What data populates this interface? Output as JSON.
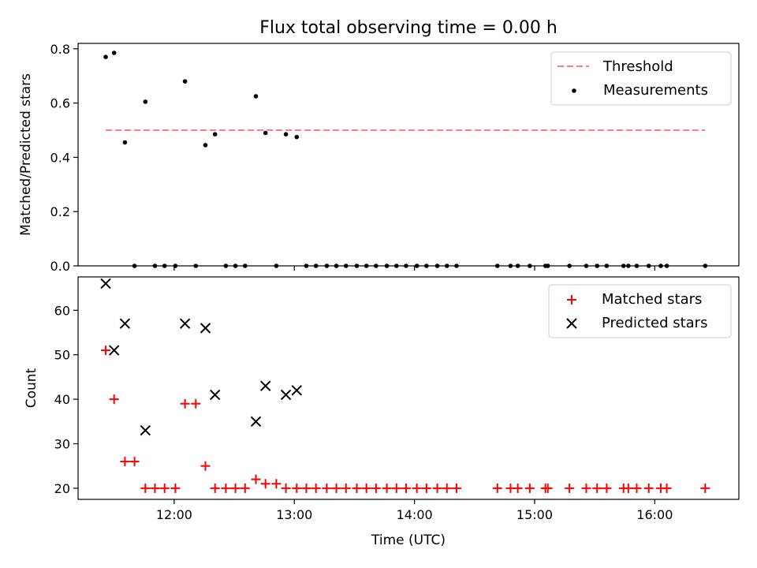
{
  "chart_data": [
    {
      "type": "scatter",
      "title": "Flux total observing time = 0.00 h",
      "xlabel": "",
      "ylabel": "Matched/Predicted stars",
      "xlim": [
        11.2,
        16.7
      ],
      "ylim": [
        0.0,
        0.82
      ],
      "xticks": [
        12,
        13,
        14,
        15,
        16
      ],
      "xtick_labels": [
        "",
        "",
        "",
        "",
        ""
      ],
      "yticks": [
        0.0,
        0.2,
        0.4,
        0.6,
        0.8
      ],
      "ytick_labels": [
        "0.0",
        "0.2",
        "0.4",
        "0.6",
        "0.8"
      ],
      "legend_position": "top-right",
      "threshold": {
        "name": "Threshold",
        "value": 0.5,
        "x_range": [
          11.43,
          16.42
        ],
        "color": "#ff7f7f"
      },
      "series": [
        {
          "name": "Measurements",
          "color": "#000000",
          "x": [
            11.43,
            11.5,
            11.59,
            11.67,
            11.76,
            11.84,
            11.92,
            12.01,
            12.09,
            12.18,
            12.26,
            12.34,
            12.43,
            12.51,
            12.59,
            12.68,
            12.76,
            12.85,
            12.93,
            13.02,
            13.1,
            13.18,
            13.27,
            13.35,
            13.43,
            13.52,
            13.6,
            13.68,
            13.77,
            13.85,
            13.93,
            14.02,
            14.1,
            14.19,
            14.27,
            14.35,
            14.69,
            14.8,
            14.86,
            14.96,
            15.09,
            15.11,
            15.29,
            15.43,
            15.52,
            15.6,
            15.74,
            15.78,
            15.85,
            15.95,
            16.05,
            16.1,
            16.42
          ],
          "y": [
            0.77,
            0.785,
            0.455,
            0.0,
            0.605,
            0.0,
            0.0,
            0.0,
            0.68,
            0.0,
            0.445,
            0.485,
            0.0,
            0.0,
            0.0,
            0.625,
            0.49,
            0.0,
            0.485,
            0.475,
            0.0,
            0.0,
            0.0,
            0.0,
            0.0,
            0.0,
            0.0,
            0.0,
            0.0,
            0.0,
            0.0,
            0.0,
            0.0,
            0.0,
            0.0,
            0.0,
            0.0,
            0.0,
            0.0,
            0.0,
            0.0,
            0.0,
            0.0,
            0.0,
            0.0,
            0.0,
            0.0,
            0.0,
            0.0,
            0.0,
            0.0,
            0.0,
            0.0
          ]
        }
      ],
      "legend": [
        "Threshold",
        "Measurements"
      ]
    },
    {
      "type": "scatter",
      "title": "",
      "xlabel": "Time (UTC)",
      "ylabel": "Count",
      "xlim": [
        11.2,
        16.7
      ],
      "ylim": [
        17.5,
        67.5
      ],
      "xticks": [
        12,
        13,
        14,
        15,
        16
      ],
      "xtick_labels": [
        "12:00",
        "13:00",
        "14:00",
        "15:00",
        "16:00"
      ],
      "yticks": [
        20,
        30,
        40,
        50,
        60
      ],
      "ytick_labels": [
        "20",
        "30",
        "40",
        "50",
        "60"
      ],
      "legend_position": "top-right",
      "series": [
        {
          "name": "Matched stars",
          "marker": "plus",
          "color": "#ff0000",
          "x": [
            11.43,
            11.5,
            11.59,
            11.67,
            11.76,
            11.84,
            11.92,
            12.01,
            12.09,
            12.18,
            12.26,
            12.34,
            12.43,
            12.51,
            12.59,
            12.68,
            12.76,
            12.85,
            12.93,
            13.02,
            13.1,
            13.18,
            13.27,
            13.35,
            13.43,
            13.52,
            13.6,
            13.68,
            13.77,
            13.85,
            13.93,
            14.02,
            14.1,
            14.19,
            14.27,
            14.35,
            14.69,
            14.8,
            14.86,
            14.96,
            15.09,
            15.11,
            15.29,
            15.43,
            15.52,
            15.6,
            15.74,
            15.78,
            15.85,
            15.95,
            16.05,
            16.1,
            16.42
          ],
          "y": [
            51,
            40,
            26,
            26,
            20,
            20,
            20,
            20,
            39,
            39,
            25,
            20,
            20,
            20,
            20,
            22,
            21,
            21,
            20,
            20,
            20,
            20,
            20,
            20,
            20,
            20,
            20,
            20,
            20,
            20,
            20,
            20,
            20,
            20,
            20,
            20,
            20,
            20,
            20,
            20,
            20,
            20,
            20,
            20,
            20,
            20,
            20,
            20,
            20,
            20,
            20,
            20,
            20
          ]
        },
        {
          "name": "Predicted stars",
          "marker": "x",
          "color": "#000000",
          "x": [
            11.43,
            11.5,
            11.59,
            11.76,
            12.09,
            12.26,
            12.34,
            12.68,
            12.76,
            12.93,
            13.02
          ],
          "y": [
            66,
            51,
            57,
            33,
            57,
            56,
            41,
            35,
            43,
            41,
            42
          ]
        }
      ],
      "legend": [
        "Matched stars",
        "Predicted stars"
      ]
    }
  ]
}
